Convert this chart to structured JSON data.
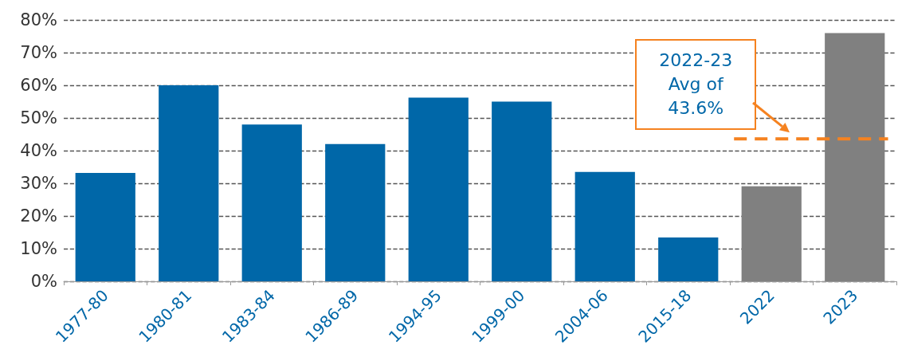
{
  "chart_data": {
    "type": "bar",
    "categories": [
      "1977-80",
      "1980-81",
      "1983-84",
      "1986-89",
      "1994-95",
      "1999-00",
      "2004-06",
      "2015-18",
      "2022",
      "2023"
    ],
    "values": [
      33.2,
      60,
      48,
      42,
      56.2,
      55,
      33.5,
      13.4,
      29.1,
      76
    ],
    "colors": [
      "#0067a8",
      "#0067a8",
      "#0067a8",
      "#0067a8",
      "#0067a8",
      "#0067a8",
      "#0067a8",
      "#0067a8",
      "#808080",
      "#808080"
    ],
    "ylim": [
      0,
      80
    ],
    "yticks": [
      {
        "value": 0,
        "label": "0%"
      },
      {
        "value": 10,
        "label": "10%"
      },
      {
        "value": 20,
        "label": "20%"
      },
      {
        "value": 30,
        "label": "30%"
      },
      {
        "value": 40,
        "label": "40%"
      },
      {
        "value": 50,
        "label": "50%"
      },
      {
        "value": 60,
        "label": "60%"
      },
      {
        "value": 70,
        "label": "70%"
      },
      {
        "value": 80,
        "label": "80%"
      }
    ],
    "grid": "y",
    "ref_lines": [
      {
        "axis": "y",
        "value": 43.6,
        "label": "2022-23\nAvg of\n43.6%",
        "color": "#f58220",
        "line_style": "dashed"
      }
    ]
  }
}
